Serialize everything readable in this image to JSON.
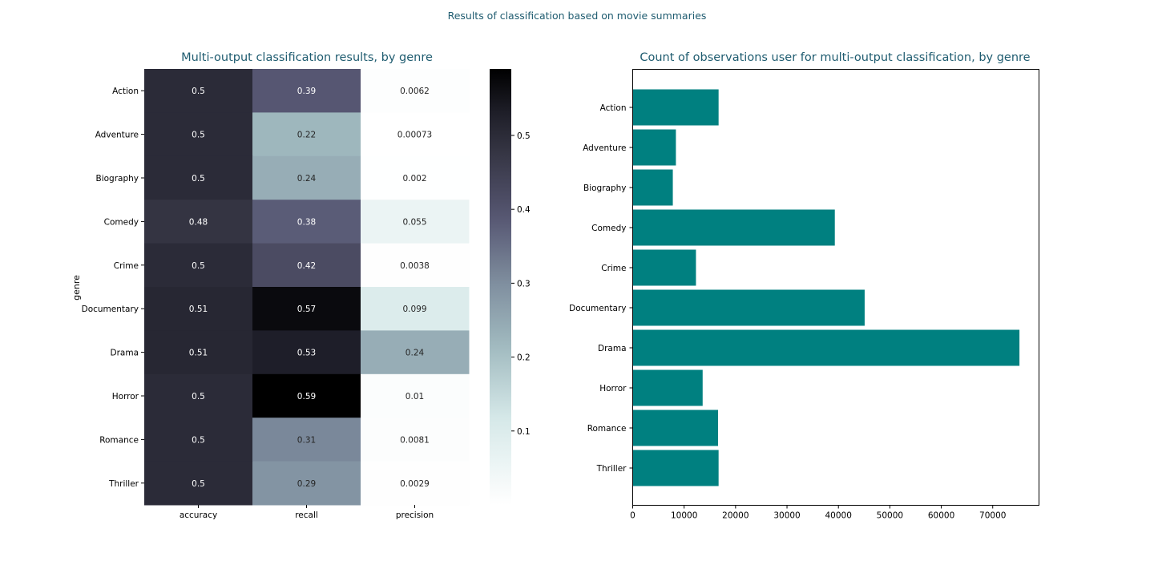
{
  "suptitle": "Results of classification based on movie summaries",
  "colors": {
    "title": "#1f5c70",
    "bar": "#008080",
    "axis": "#000000"
  },
  "chart_data": [
    {
      "type": "heatmap",
      "title": "Multi-output classification results, by genre",
      "ylabel": "genre",
      "xlabel": "",
      "colormap": "bone_r",
      "color_range": [
        0,
        0.59
      ],
      "colorbar_ticks": [
        0.1,
        0.2,
        0.3,
        0.4,
        0.5
      ],
      "columns": [
        "accuracy",
        "recall",
        "precision"
      ],
      "rows": [
        "Action",
        "Adventure",
        "Biography",
        "Comedy",
        "Crime",
        "Documentary",
        "Drama",
        "Horror",
        "Romance",
        "Thriller"
      ],
      "values": [
        [
          0.5,
          0.39,
          0.0062
        ],
        [
          0.5,
          0.22,
          0.00073
        ],
        [
          0.5,
          0.24,
          0.002
        ],
        [
          0.48,
          0.38,
          0.055
        ],
        [
          0.5,
          0.42,
          0.0038
        ],
        [
          0.51,
          0.57,
          0.099
        ],
        [
          0.51,
          0.53,
          0.24
        ],
        [
          0.5,
          0.59,
          0.01
        ],
        [
          0.5,
          0.31,
          0.0081
        ],
        [
          0.5,
          0.29,
          0.0029
        ]
      ],
      "labels": [
        [
          "0.5",
          "0.39",
          "0.0062"
        ],
        [
          "0.5",
          "0.22",
          "0.00073"
        ],
        [
          "0.5",
          "0.24",
          "0.002"
        ],
        [
          "0.48",
          "0.38",
          "0.055"
        ],
        [
          "0.5",
          "0.42",
          "0.0038"
        ],
        [
          "0.51",
          "0.57",
          "0.099"
        ],
        [
          "0.51",
          "0.53",
          "0.24"
        ],
        [
          "0.5",
          "0.59",
          "0.01"
        ],
        [
          "0.5",
          "0.31",
          "0.0081"
        ],
        [
          "0.5",
          "0.29",
          "0.0029"
        ]
      ]
    },
    {
      "type": "bar",
      "orientation": "horizontal",
      "title": "Count of observations user for multi-output classification, by genre",
      "xlabel": "",
      "ylabel": "",
      "categories": [
        "Action",
        "Adventure",
        "Biography",
        "Comedy",
        "Crime",
        "Documentary",
        "Drama",
        "Horror",
        "Romance",
        "Thriller"
      ],
      "values": [
        16700,
        8400,
        7800,
        39300,
        12300,
        45100,
        75200,
        13600,
        16600,
        16700
      ],
      "xlim": [
        0,
        79000
      ],
      "xticks": [
        0,
        10000,
        20000,
        30000,
        40000,
        50000,
        60000,
        70000
      ],
      "grid": false
    }
  ]
}
